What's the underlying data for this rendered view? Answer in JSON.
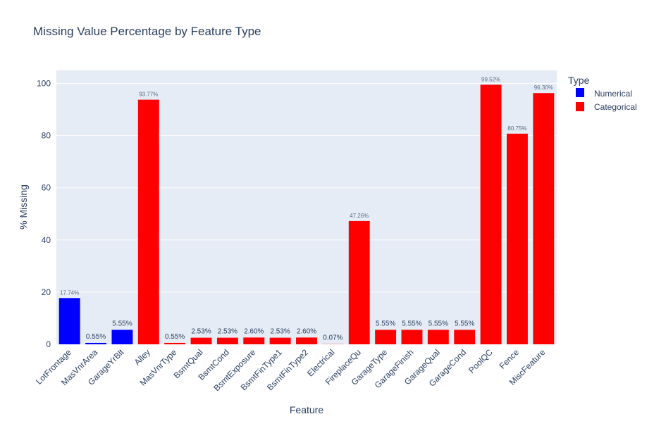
{
  "chart_data": {
    "type": "bar",
    "title": "Missing Value Percentage by Feature Type",
    "xlabel": "Feature",
    "ylabel": "% Missing",
    "ylim": [
      0,
      105
    ],
    "yticks": [
      0,
      20,
      40,
      60,
      80,
      100
    ],
    "grid": true,
    "legend": {
      "title": "Type",
      "placement": "top-right"
    },
    "categories": [
      "LotFrontage",
      "MasVnrArea",
      "GarageYrBlt",
      "Alley",
      "MasVnrType",
      "BsmtQual",
      "BsmtCond",
      "BsmtExposure",
      "BsmtFinType1",
      "BsmtFinType2",
      "Electrical",
      "FireplaceQu",
      "GarageType",
      "GarageFinish",
      "GarageQual",
      "GarageCond",
      "PoolQC",
      "Fence",
      "MiscFeature"
    ],
    "series": [
      {
        "name": "Numerical",
        "color": "#0000ff",
        "points": [
          {
            "category": "LotFrontage",
            "value": 17.74,
            "label": "17.74%"
          },
          {
            "category": "MasVnrArea",
            "value": 0.55,
            "label": "0.55%"
          },
          {
            "category": "GarageYrBlt",
            "value": 5.55,
            "label": "5.55%"
          }
        ]
      },
      {
        "name": "Categorical",
        "color": "#ff0000",
        "points": [
          {
            "category": "Alley",
            "value": 93.77,
            "label": "93.77%"
          },
          {
            "category": "MasVnrType",
            "value": 0.55,
            "label": "0.55%"
          },
          {
            "category": "BsmtQual",
            "value": 2.53,
            "label": "2.53%"
          },
          {
            "category": "BsmtCond",
            "value": 2.53,
            "label": "2.53%"
          },
          {
            "category": "BsmtExposure",
            "value": 2.6,
            "label": "2.60%"
          },
          {
            "category": "BsmtFinType1",
            "value": 2.53,
            "label": "2.53%"
          },
          {
            "category": "BsmtFinType2",
            "value": 2.6,
            "label": "2.60%"
          },
          {
            "category": "Electrical",
            "value": 0.07,
            "label": "0.07%"
          },
          {
            "category": "FireplaceQu",
            "value": 47.26,
            "label": "47.26%"
          },
          {
            "category": "GarageType",
            "value": 5.55,
            "label": "5.55%"
          },
          {
            "category": "GarageFinish",
            "value": 5.55,
            "label": "5.55%"
          },
          {
            "category": "GarageQual",
            "value": 5.55,
            "label": "5.55%"
          },
          {
            "category": "GarageCond",
            "value": 5.55,
            "label": "5.55%"
          },
          {
            "category": "PoolQC",
            "value": 99.52,
            "label": "99.52%"
          },
          {
            "category": "Fence",
            "value": 80.75,
            "label": "80.75%"
          },
          {
            "category": "MiscFeature",
            "value": 96.3,
            "label": "96.30%"
          }
        ]
      }
    ]
  }
}
